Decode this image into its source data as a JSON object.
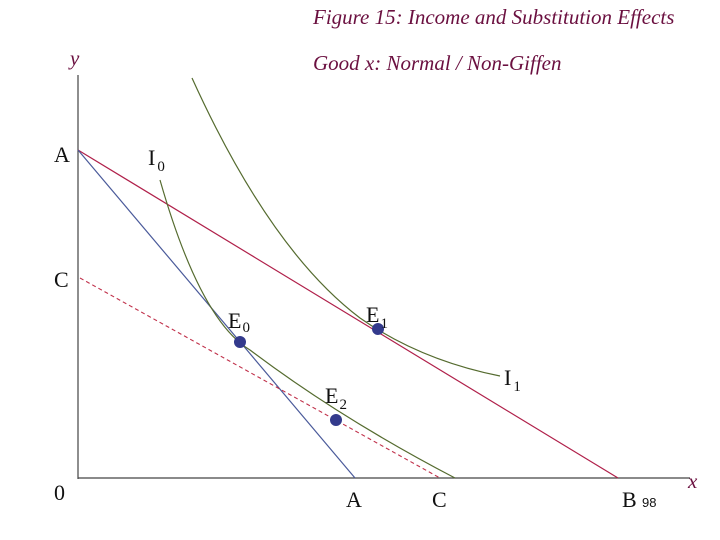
{
  "header": {
    "title": "Figure 15: Income and Substitution Effects",
    "subtitle": "Good x: Normal / Non-Giffen"
  },
  "axes": {
    "y": "y",
    "x": "x",
    "origin": "0"
  },
  "intercepts": {
    "y_a": "A",
    "y_c": "C",
    "x_a": "A",
    "x_c": "C",
    "x_b": "B"
  },
  "page_number": "98",
  "curves": [
    {
      "label": "I",
      "sub": "0"
    },
    {
      "label": "I",
      "sub": "1"
    }
  ],
  "points": [
    {
      "label": "E",
      "sub": "0"
    },
    {
      "label": "E",
      "sub": "1"
    },
    {
      "label": "E",
      "sub": "2"
    }
  ]
}
